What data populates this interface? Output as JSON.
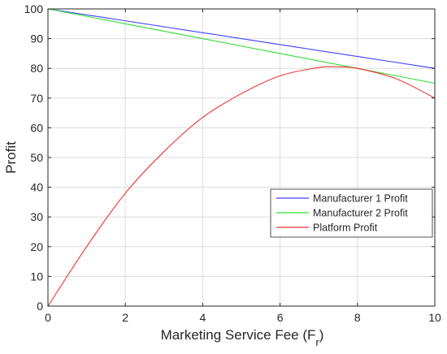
{
  "chart_data": {
    "type": "line",
    "xlabel": "Marketing Service Fee (F",
    "xlabel_subscript": "r",
    "xlabel_suffix": ")",
    "ylabel": "Profit",
    "xlim": [
      0,
      10
    ],
    "ylim": [
      0,
      100
    ],
    "x_ticks": [
      0,
      2,
      4,
      6,
      8,
      10
    ],
    "y_ticks": [
      0,
      10,
      20,
      30,
      40,
      50,
      60,
      70,
      80,
      90,
      100
    ],
    "grid": true,
    "legend_position": "center-right",
    "series": [
      {
        "name": "Manufacturer 1 Profit",
        "color": "#4040ff",
        "x": [
          0,
          2,
          4,
          6,
          8,
          10
        ],
        "y": [
          100,
          96,
          92,
          88,
          84,
          80
        ]
      },
      {
        "name": "Manufacturer 2 Profit",
        "color": "#33dd33",
        "x": [
          0,
          2,
          4,
          6,
          8,
          10
        ],
        "y": [
          100,
          95,
          90,
          85,
          80,
          75
        ]
      },
      {
        "name": "Platform Profit",
        "color": "#ee3333",
        "x": [
          0,
          1,
          2,
          3,
          4,
          5,
          6,
          7,
          7.5,
          8,
          9,
          10
        ],
        "y": [
          0,
          20,
          38,
          52,
          63.5,
          71.5,
          77.5,
          80.3,
          80.5,
          80,
          76.5,
          70
        ]
      }
    ]
  }
}
